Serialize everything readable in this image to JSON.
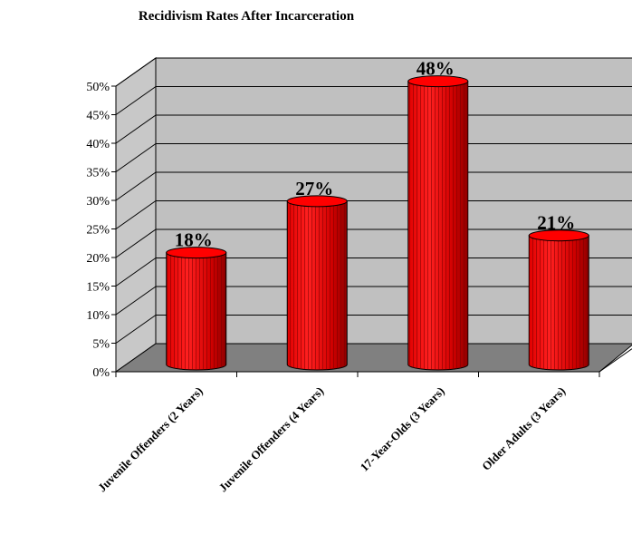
{
  "chart_data": {
    "type": "bar",
    "title": "Recidivism Rates After Incarceration",
    "categories": [
      "Juvenile Offenders (2 Years)",
      "Juvenile Offenders (4 Years)",
      "17-Year-Olds (3 Years)",
      "Older Adults (3 Years)"
    ],
    "values": [
      18,
      27,
      48,
      21
    ],
    "data_labels": [
      "18%",
      "27%",
      "48%",
      "21%"
    ],
    "ylim": [
      0,
      50
    ],
    "yticks": [
      "0%",
      "5%",
      "10%",
      "15%",
      "20%",
      "25%",
      "30%",
      "35%",
      "40%",
      "45%",
      "50%"
    ],
    "grid": true,
    "legend": "none",
    "style": "3d-cylinder",
    "colors": {
      "bar": "#ff0000",
      "bar_dark": "#a80000",
      "wall": "#c0c0c0",
      "floor": "#808080",
      "side_wall": "#c8c8c8"
    }
  }
}
